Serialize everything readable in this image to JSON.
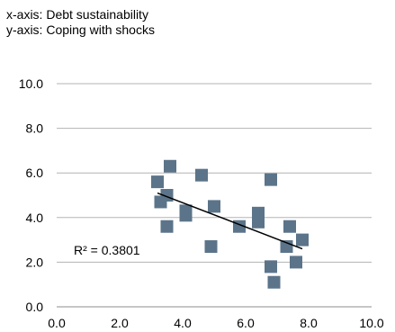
{
  "captions": {
    "x_axis": "x-axis: Debt sustainability",
    "y_axis": "y-axis: Coping with shocks"
  },
  "chart_data": {
    "type": "scatter",
    "xlim": [
      0,
      10
    ],
    "ylim": [
      0,
      10
    ],
    "x_ticks": [
      "0.0",
      "2.0",
      "4.0",
      "6.0",
      "8.0",
      "10.0"
    ],
    "y_ticks": [
      "0.0",
      "2.0",
      "4.0",
      "6.0",
      "8.0",
      "10.0"
    ],
    "grid": "horizontal",
    "marker_color": "#5b7489",
    "trendline_color": "#000000",
    "r_squared_label": "R² = 0.3801",
    "trendline": {
      "start": [
        3.2,
        5.1
      ],
      "end": [
        7.8,
        2.6
      ]
    },
    "points": [
      [
        3.2,
        5.6
      ],
      [
        3.3,
        4.7
      ],
      [
        3.5,
        5.0
      ],
      [
        3.6,
        6.3
      ],
      [
        3.5,
        3.6
      ],
      [
        4.1,
        4.3
      ],
      [
        4.1,
        4.1
      ],
      [
        4.6,
        5.9
      ],
      [
        4.9,
        2.7
      ],
      [
        5.0,
        4.5
      ],
      [
        5.8,
        3.6
      ],
      [
        6.4,
        4.2
      ],
      [
        6.4,
        3.8
      ],
      [
        6.8,
        5.7
      ],
      [
        6.8,
        1.8
      ],
      [
        6.9,
        1.1
      ],
      [
        7.3,
        2.7
      ],
      [
        7.4,
        3.6
      ],
      [
        7.6,
        2.0
      ],
      [
        7.8,
        3.0
      ]
    ]
  }
}
